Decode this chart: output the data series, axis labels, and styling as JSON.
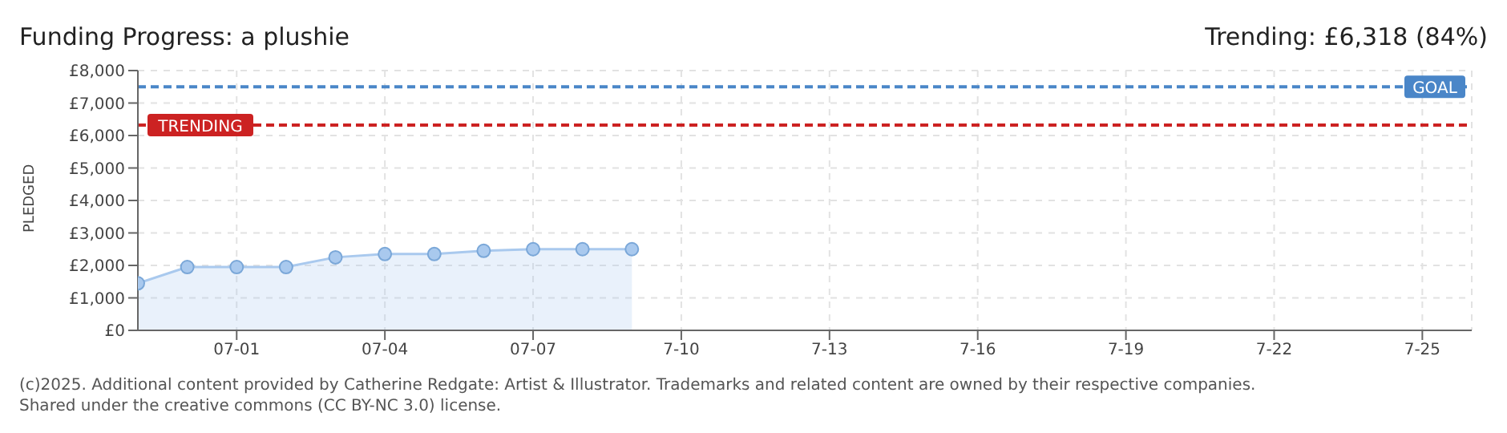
{
  "chart_data": {
    "type": "area",
    "title": "Funding Progress: a plushie",
    "ylabel": "PLEDGED",
    "annotations": [
      "Trending:  £6,318 (84%)",
      "(c)2025. Additional content provided by Catherine Redgate: Artist & Illustrator. Trademarks and related content are owned by their respective companies.",
      "Shared under the creative commons (CC BY-NC 3.0) license."
    ],
    "x": [
      "2025-06-29",
      "2025-06-30",
      "2025-07-01",
      "2025-07-02",
      "2025-07-03",
      "2025-07-04",
      "2025-07-05",
      "2025-07-06",
      "2025-07-07",
      "2025-07-08",
      "2025-07-09"
    ],
    "series": [
      {
        "color": "#a9c9ee",
        "values": [
          1450,
          1950,
          1950,
          1950,
          2250,
          2350,
          2350,
          2450,
          2500,
          2500,
          2500
        ]
      }
    ],
    "xlim": [
      "2025-06-29",
      "2025-07-26"
    ],
    "xticks": [
      {
        "value": "2025-07-01",
        "label": "07-01"
      },
      {
        "value": "2025-07-04",
        "label": "07-04"
      },
      {
        "value": "2025-07-07",
        "label": "07-07"
      },
      {
        "value": "2025-07-10",
        "label": "7-10"
      },
      {
        "value": "2025-07-13",
        "label": "7-13"
      },
      {
        "value": "2025-07-16",
        "label": "7-16"
      },
      {
        "value": "2025-07-19",
        "label": "7-19"
      },
      {
        "value": "2025-07-22",
        "label": "7-22"
      },
      {
        "value": "2025-07-25",
        "label": "7-25"
      }
    ],
    "ylim": [
      0,
      8000
    ],
    "yticks": [
      {
        "value": 0,
        "label": "£0"
      },
      {
        "value": 1000,
        "label": "£1,000"
      },
      {
        "value": 2000,
        "label": "£2,000"
      },
      {
        "value": 3000,
        "label": "£3,000"
      },
      {
        "value": 4000,
        "label": "£4,000"
      },
      {
        "value": 5000,
        "label": "£5,000"
      },
      {
        "value": 6000,
        "label": "£6,000"
      },
      {
        "value": 7000,
        "label": "£7,000"
      },
      {
        "value": 8000,
        "label": "£8,000"
      }
    ],
    "ref_lines": [
      {
        "axis": "y",
        "value": 7500,
        "label": "GOAL",
        "color": "#4a86c8",
        "line_style": "dashed"
      },
      {
        "axis": "y",
        "value": 6318,
        "label": "TRENDING",
        "color": "#cc2222",
        "line_style": "dashed"
      }
    ],
    "grid": true,
    "marker": "circle",
    "line_style": "solid"
  }
}
